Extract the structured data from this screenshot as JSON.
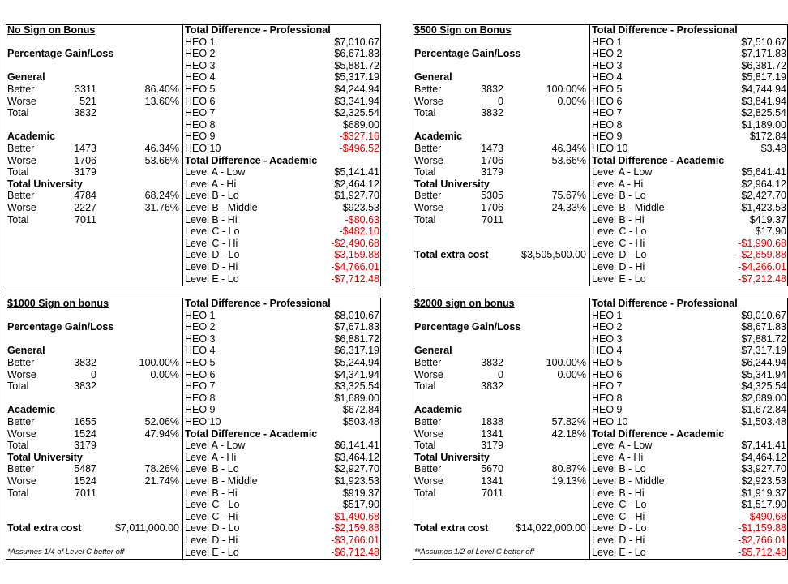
{
  "panels": [
    {
      "title": "No Sign on Bonus",
      "pct_heading": "Percentage Gain/Loss",
      "groups": [
        {
          "name": "General",
          "rows": [
            [
              "Better",
              "3311",
              "86.40%"
            ],
            [
              "Worse",
              "521",
              "13.60%"
            ],
            [
              "Total",
              "3832"
            ]
          ]
        },
        {
          "name": "Academic",
          "rows": [
            [
              "Better",
              "1473",
              "46.34%"
            ],
            [
              "Worse",
              "1706",
              "53.66%"
            ],
            [
              "Total",
              "3179"
            ]
          ]
        },
        {
          "name": "Total University",
          "rows": [
            [
              "Better",
              "4784",
              "68.24%"
            ],
            [
              "Worse",
              "2227",
              "31.76%"
            ],
            [
              "Total",
              "7011"
            ]
          ]
        }
      ],
      "prof_heading": "Total Difference - Professional",
      "prof_rows": [
        [
          "HEO 1",
          "$7,010.67"
        ],
        [
          "HEO 2",
          "$6,671.83"
        ],
        [
          "HEO 3",
          "$5,881.72"
        ],
        [
          "HEO 4",
          "$5,317.19"
        ],
        [
          "HEO 5",
          "$4,244.94"
        ],
        [
          "HEO 6",
          "$3,341.94"
        ],
        [
          "HEO 7",
          "$2,325.54"
        ],
        [
          "HEO 8",
          "$689.00"
        ],
        [
          "HEO 9",
          "-$327.16"
        ],
        [
          "HEO 10",
          "-$496.52"
        ]
      ],
      "acad_heading": "Total Difference - Academic",
      "acad_rows": [
        [
          "Level A - Low",
          "$5,141.41"
        ],
        [
          "Level A - Hi",
          "$2,464.12"
        ],
        [
          "Level B - Lo",
          "$1,927.70"
        ],
        [
          "Level B - Middle",
          "$923.53"
        ],
        [
          "Level B - Hi",
          "-$80.63"
        ],
        [
          "Level C - Lo",
          "-$482.10"
        ],
        [
          "Level C - Hi",
          "-$2,490.68"
        ],
        [
          "Level D - Lo",
          "-$3,159.88"
        ],
        [
          "Level D - Hi",
          "-$4,766.01"
        ],
        [
          "Level E - Lo",
          "-$7,712.48"
        ]
      ]
    },
    {
      "title": "$500 Sign on Bonus",
      "pct_heading": "Percentage Gain/Loss",
      "groups": [
        {
          "name": "General",
          "rows": [
            [
              "Better",
              "3832",
              "100.00%"
            ],
            [
              "Worse",
              "0",
              "0.00%"
            ],
            [
              "Total",
              "3832"
            ]
          ]
        },
        {
          "name": "Academic",
          "rows": [
            [
              "Better",
              "1473",
              "46.34%"
            ],
            [
              "Worse",
              "1706",
              "53.66%"
            ],
            [
              "Total",
              "3179"
            ]
          ]
        },
        {
          "name": "Total University",
          "rows": [
            [
              "Better",
              "5305",
              "75.67%"
            ],
            [
              "Worse",
              "1706",
              "24.33%"
            ],
            [
              "Total",
              "7011"
            ]
          ]
        }
      ],
      "extra_cost": {
        "label": "Total extra cost",
        "value": "$3,505,500.00"
      },
      "prof_heading": "Total Difference - Professional",
      "prof_rows": [
        [
          "HEO 1",
          "$7,510.67"
        ],
        [
          "HEO 2",
          "$7,171.83"
        ],
        [
          "HEO 3",
          "$6,381.72"
        ],
        [
          "HEO 4",
          "$5,817.19"
        ],
        [
          "HEO 5",
          "$4,744.94"
        ],
        [
          "HEO 6",
          "$3,841.94"
        ],
        [
          "HEO 7",
          "$2,825.54"
        ],
        [
          "HEO 8",
          "$1,189.00"
        ],
        [
          "HEO 9",
          "$172.84"
        ],
        [
          "HEO 10",
          "$3.48"
        ]
      ],
      "acad_heading": "Total Difference - Academic",
      "acad_rows": [
        [
          "Level A - Low",
          "$5,641.41"
        ],
        [
          "Level A - Hi",
          "$2,964.12"
        ],
        [
          "Level B - Lo",
          "$2,427.70"
        ],
        [
          "Level B - Middle",
          "$1,423.53"
        ],
        [
          "Level B - Hi",
          "$419.37"
        ],
        [
          "Level C - Lo",
          "$17.90"
        ],
        [
          "Level C - Hi",
          "-$1,990.68"
        ],
        [
          "Level D - Lo",
          "-$2,659.88"
        ],
        [
          "Level D - Hi",
          "-$4,266.01"
        ],
        [
          "Level E - Lo",
          "-$7,212.48"
        ]
      ]
    },
    {
      "title": "$1000 Sign on bonus",
      "pct_heading": "Percentage Gain/Loss",
      "groups": [
        {
          "name": "General",
          "rows": [
            [
              "Better",
              "3832",
              "100.00%"
            ],
            [
              "Worse",
              "0",
              "0.00%"
            ],
            [
              "Total",
              "3832"
            ]
          ]
        },
        {
          "name": "Academic",
          "rows": [
            [
              "Better",
              "1655",
              "52.06%"
            ],
            [
              "Worse",
              "1524",
              "47.94%"
            ],
            [
              "Total",
              "3179"
            ]
          ]
        },
        {
          "name": "Total University",
          "rows": [
            [
              "Better",
              "5487",
              "78.26%"
            ],
            [
              "Worse",
              "1524",
              "21.74%"
            ],
            [
              "Total",
              "7011"
            ]
          ]
        }
      ],
      "extra_cost": {
        "label": "Total extra cost",
        "value": "$7,011,000.00"
      },
      "note": "*Assumes 1/4 of Level C better off",
      "prof_heading": "Total Difference - Professional",
      "prof_rows": [
        [
          "HEO 1",
          "$8,010.67"
        ],
        [
          "HEO 2",
          "$7,671.83"
        ],
        [
          "HEO 3",
          "$6,881.72"
        ],
        [
          "HEO 4",
          "$6,317.19"
        ],
        [
          "HEO 5",
          "$5,244.94"
        ],
        [
          "HEO 6",
          "$4,341.94"
        ],
        [
          "HEO 7",
          "$3,325.54"
        ],
        [
          "HEO 8",
          "$1,689.00"
        ],
        [
          "HEO 9",
          "$672.84"
        ],
        [
          "HEO 10",
          "$503.48"
        ]
      ],
      "acad_heading": "Total Difference - Academic",
      "acad_rows": [
        [
          "Level A - Low",
          "$6,141.41"
        ],
        [
          "Level A - Hi",
          "$3,464.12"
        ],
        [
          "Level B - Lo",
          "$2,927.70"
        ],
        [
          "Level B - Middle",
          "$1,923.53"
        ],
        [
          "Level B - Hi",
          "$919.37"
        ],
        [
          "Level C - Lo",
          "$517.90"
        ],
        [
          "Level C - Hi",
          "-$1,490.68"
        ],
        [
          "Level D - Lo",
          "-$2,159.88"
        ],
        [
          "Level D - Hi",
          "-$3,766.01"
        ],
        [
          "Level E - Lo",
          "-$6,712.48"
        ]
      ]
    },
    {
      "title": "$2000 sign on bonus",
      "pct_heading": "Percentage Gain/Loss",
      "groups": [
        {
          "name": "General",
          "rows": [
            [
              "Better",
              "3832",
              "100.00%"
            ],
            [
              "Worse",
              "0",
              "0.00%"
            ],
            [
              "Total",
              "3832"
            ]
          ]
        },
        {
          "name": "Academic",
          "rows": [
            [
              "Better",
              "1838",
              "57.82%"
            ],
            [
              "Worse",
              "1341",
              "42.18%"
            ],
            [
              "Total",
              "3179"
            ]
          ]
        },
        {
          "name": "Total University",
          "rows": [
            [
              "Better",
              "5670",
              "80.87%"
            ],
            [
              "Worse",
              "1341",
              "19.13%"
            ],
            [
              "Total",
              "7011"
            ]
          ]
        }
      ],
      "extra_cost": {
        "label": "Total extra cost",
        "value": "$14,022,000.00"
      },
      "note": "**Assumes 1/2 of Level C better off",
      "prof_heading": "Total Difference - Professional",
      "prof_rows": [
        [
          "HEO 1",
          "$9,010.67"
        ],
        [
          "HEO 2",
          "$8,671.83"
        ],
        [
          "HEO 3",
          "$7,881.72"
        ],
        [
          "HEO 4",
          "$7,317.19"
        ],
        [
          "HEO 5",
          "$6,244.94"
        ],
        [
          "HEO 6",
          "$5,341.94"
        ],
        [
          "HEO 7",
          "$4,325.54"
        ],
        [
          "HEO 8",
          "$2,689.00"
        ],
        [
          "HEO 9",
          "$1,672.84"
        ],
        [
          "HEO 10",
          "$1,503.48"
        ]
      ],
      "acad_heading": "Total Difference - Academic",
      "acad_rows": [
        [
          "Level A - Low",
          "$7,141.41"
        ],
        [
          "Level A - Hi",
          "$4,464.12"
        ],
        [
          "Level B - Lo",
          "$3,927.70"
        ],
        [
          "Level B - Middle",
          "$2,923.53"
        ],
        [
          "Level B - Hi",
          "$1,919.37"
        ],
        [
          "Level C - Lo",
          "$1,517.90"
        ],
        [
          "Level C - Hi",
          "-$490.68"
        ],
        [
          "Level D - Lo",
          "-$1,159.88"
        ],
        [
          "Level D - Hi",
          "-$2,766.01"
        ],
        [
          "Level E - Lo",
          "-$5,712.48"
        ]
      ]
    }
  ]
}
